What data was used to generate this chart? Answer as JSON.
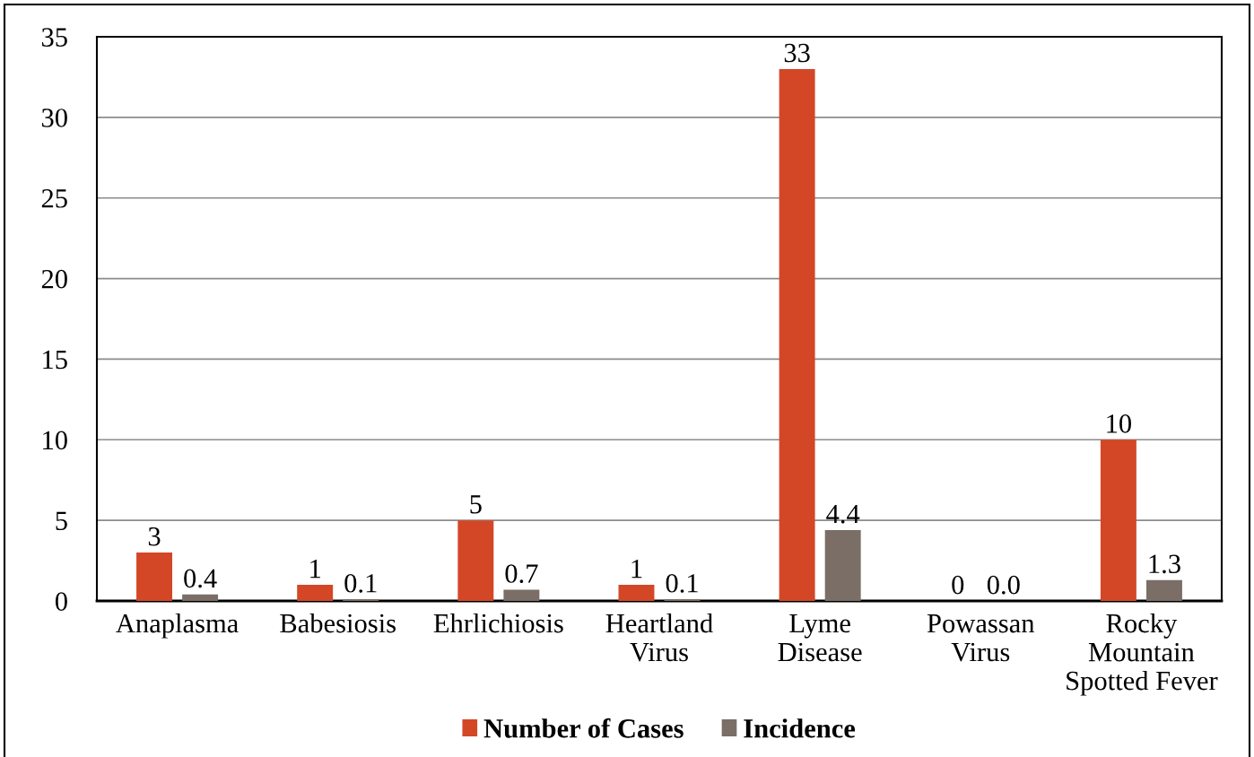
{
  "chart_data": {
    "type": "bar",
    "categories": [
      "Anaplasma",
      "Babesiosis",
      "Ehrlichiosis",
      "Heartland\nVirus",
      "Lyme\nDisease",
      "Powassan\nVirus",
      "Rocky\nMountain\nSpotted Fever"
    ],
    "series": [
      {
        "name": "Number of Cases",
        "color": "#d34727",
        "values": [
          3,
          1,
          5,
          1,
          33,
          0,
          10
        ],
        "value_labels": [
          "3",
          "1",
          "5",
          "1",
          "33",
          "0",
          "10"
        ]
      },
      {
        "name": "Incidence",
        "color": "#7a6e66",
        "values": [
          0.4,
          0.1,
          0.7,
          0.1,
          4.4,
          0.0,
          1.3
        ],
        "value_labels": [
          "0.4",
          "0.1",
          "0.7",
          "0.1",
          "4.4",
          "0.0",
          "1.3"
        ]
      }
    ],
    "ylim": [
      0,
      35
    ],
    "yticks": [
      0,
      5,
      10,
      15,
      20,
      25,
      30,
      35
    ],
    "grid": "y",
    "legend": "bottom"
  }
}
